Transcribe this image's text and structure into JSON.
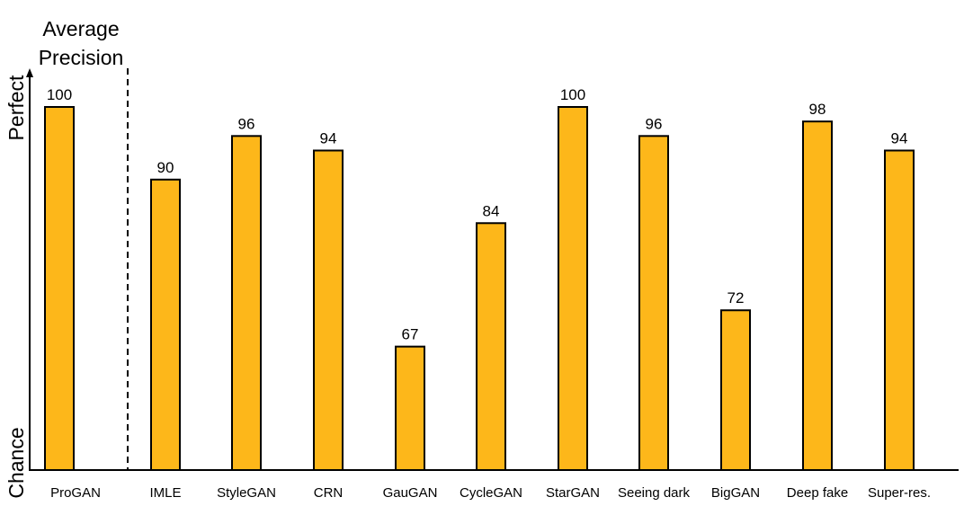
{
  "chart_data": {
    "type": "bar",
    "title": "",
    "ylabel": "Average Precision",
    "ylabel_lines": [
      "Average",
      "Precision"
    ],
    "y_axis_top_label": "Perfect",
    "y_axis_bottom_label": "Chance",
    "categories": [
      "ProGAN",
      "IMLE",
      "StyleGAN",
      "CRN",
      "GauGAN",
      "CycleGAN",
      "StarGAN",
      "Seeing dark",
      "BigGAN",
      "Deep fake",
      "Super-res."
    ],
    "values": [
      100,
      90,
      96,
      94,
      67,
      84,
      100,
      96,
      72,
      98,
      94
    ],
    "ylim": [
      50,
      100
    ],
    "separator_after_index": 0,
    "grid": false,
    "bar_color": "#FDB71A"
  }
}
